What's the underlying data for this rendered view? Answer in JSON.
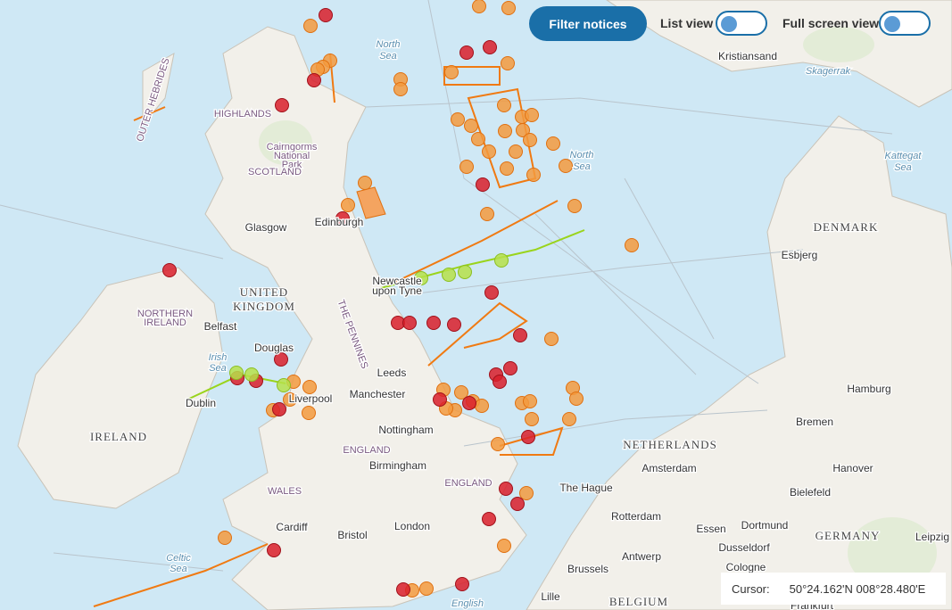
{
  "controls": {
    "filter_button": "Filter notices",
    "list_view": "List view",
    "full_screen_view": "Full screen view"
  },
  "cursor": {
    "label": "Cursor:",
    "value": "50°24.162'N 008°28.480'E"
  },
  "map": {
    "labels": [
      "Kristiansand",
      "Skagerrak",
      "North",
      "Sea",
      "OUTER HEBRIDES",
      "HIGHLANDS",
      "Cairngorms",
      "National",
      "Park",
      "SCOTLAND",
      "Glasgow",
      "Edinburgh",
      "North",
      "Sea",
      "DENMARK",
      "Esbjerg",
      "Kattegat",
      "Sea",
      "Newcastle",
      "upon Tyne",
      "UNITED",
      "KINGDOM",
      "NORTHERN",
      "IRELAND",
      "Belfast",
      "THE PENNINES",
      "Douglas",
      "Irish",
      "Sea",
      "Leeds",
      "Manchester",
      "Liverpool",
      "Dublin",
      "Hamburg",
      "IRELAND",
      "Nottingham",
      "Bremen",
      "NETHERLANDS",
      "ENGLAND",
      "Amsterdam",
      "Hanover",
      "Birmingham",
      "ENGLAND",
      "WALES",
      "The Hague",
      "Bielefeld",
      "Rotterdam",
      "Cardiff",
      "Bristol",
      "London",
      "Essen",
      "Dortmund",
      "GERMANY",
      "Leipzig",
      "Dusseldorf",
      "Antwerp",
      "Celtic",
      "Sea",
      "Cologne",
      "Brussels",
      "Lille",
      "BELGIUM",
      "Frankfurt",
      "English"
    ]
  }
}
